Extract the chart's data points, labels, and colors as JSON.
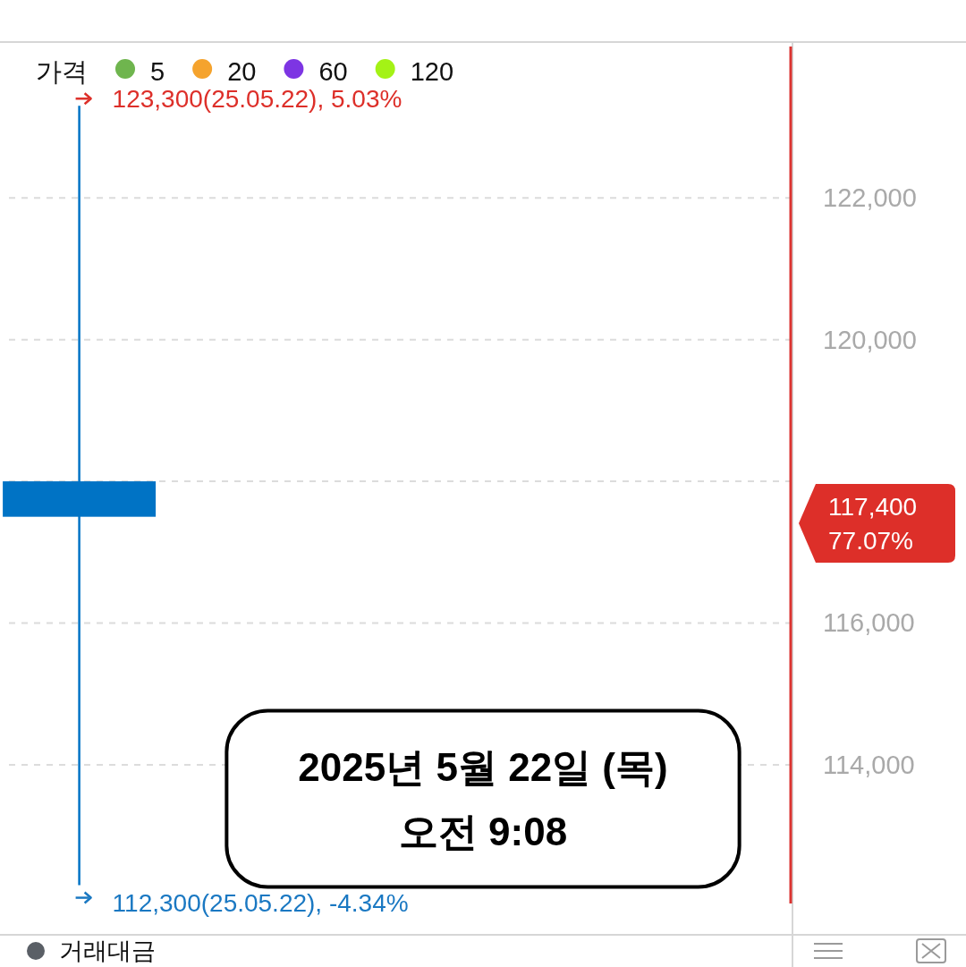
{
  "chart_data": {
    "type": "candlestick",
    "categories": [
      null,
      null,
      null,
      null,
      null
    ],
    "ohlc": [
      [
        118000,
        123300,
        112300,
        117500
      ],
      null,
      null,
      null,
      null
    ],
    "colors": [
      "#0073c5",
      null,
      null,
      null,
      null
    ],
    "series": [
      {
        "name": "5",
        "type": "line",
        "color": "#6fb54e",
        "values": [
          null,
          null,
          null,
          null,
          null
        ]
      },
      {
        "name": "20",
        "type": "line",
        "color": "#f5a32d",
        "values": [
          null,
          null,
          null,
          null,
          null
        ]
      },
      {
        "name": "60",
        "type": "line",
        "color": "#7d35e3",
        "values": [
          null,
          null,
          null,
          null,
          null
        ]
      },
      {
        "name": "120",
        "type": "line",
        "color": "#a4f216",
        "values": [
          null,
          null,
          null,
          null,
          null
        ]
      }
    ],
    "legend_title": "가격",
    "legend": "top left",
    "ylim": [
      111600,
      124200
    ],
    "yticks": [
      {
        "value": 114000,
        "label": "114,000"
      },
      {
        "value": 116000,
        "label": "116,000"
      },
      {
        "value": 118000,
        "label": null
      },
      {
        "value": 120000,
        "label": "120,000"
      },
      {
        "value": 122000,
        "label": "122,000"
      }
    ],
    "grid": "y",
    "tick_labels": "y",
    "annotations": [
      "123,300(25.05.22), 5.03%",
      "112,300(25.05.22), -4.34%",
      "117,400\n77.07%",
      "2025년 5월 22일 (목)\n오전 9:08",
      "거래대금"
    ]
  }
}
